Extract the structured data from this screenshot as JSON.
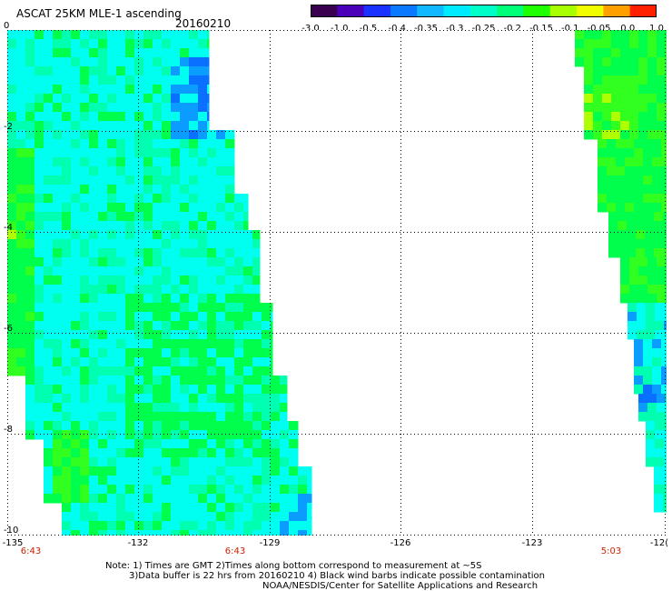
{
  "header": {
    "title": "ASCAT 25KM MLE-1 ascending",
    "date": "20160210"
  },
  "colorbar": {
    "tick_labels": [
      "-3.0",
      "-1.0",
      "-0.5",
      "-0.4",
      "-0.35",
      "-0.3",
      "-0.25",
      "-0.2",
      "-0.15",
      "-0.1",
      "-0.05",
      "0.0",
      "1.0"
    ],
    "colors": [
      "#3a0050",
      "#4a00b8",
      "#1a32ff",
      "#0a78ff",
      "#12b8ff",
      "#00eaff",
      "#00ffc8",
      "#00ff78",
      "#20ff00",
      "#a8ff00",
      "#f0ff00",
      "#ffa000",
      "#ff2000"
    ]
  },
  "map": {
    "y_tick_labels": [
      "0",
      "-2",
      "-4",
      "-6",
      "-8",
      "-10"
    ],
    "x_tick_labels": [
      "-135",
      "-132",
      "-129",
      "-126",
      "-123",
      "-12("
    ],
    "time_labels": [
      "6:43",
      "6:43",
      "5:03"
    ],
    "swath_colors": {
      "cyan": "#00fff0",
      "aqua_green": "#00ffb0",
      "green": "#00ff4c",
      "light_green": "#30ff20",
      "yellow_green": "#b0ff00",
      "blue": "#0a9cff",
      "deep_blue": "#0a70ff"
    },
    "grid": "dotted"
  },
  "footer": {
    "note_line1": "Note: 1) Times are GMT 2)Times along bottom correspond to measurement at ~5S",
    "note_line2": "3)Data buffer is 22 hrs from 20160210 4) Black wind barbs indicate possible contamination",
    "note_line3": "NOAA/NESDIS/Center for Satellite Applications and Research"
  }
}
